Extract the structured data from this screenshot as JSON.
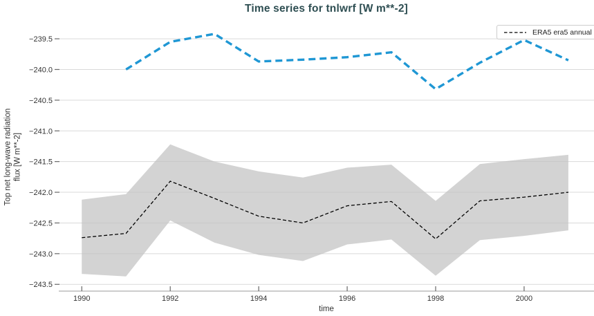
{
  "title": "Time series for tnlwrf [W m**-2]",
  "legend": {
    "items": [
      {
        "label": "ERA5 era5 annual",
        "sample": "dashed-black-line"
      }
    ]
  },
  "axes": {
    "x": {
      "label": "time",
      "tick_values": [
        1990,
        1992,
        1994,
        1996,
        1998,
        2000
      ],
      "tick_labels": [
        "1990",
        "1992",
        "1994",
        "1996",
        "1998",
        "2000"
      ],
      "range": [
        1989.48,
        2001.58
      ]
    },
    "y": {
      "label_line1": "Top net long-wave radiation",
      "label_line2": "flux [W m**-2]",
      "tick_values": [
        -239.5,
        -240.0,
        -240.5,
        -241.0,
        -241.5,
        -242.0,
        -242.5,
        -243.0,
        -243.5
      ],
      "tick_labels": [
        "−239.5",
        "−240.0",
        "−240.5",
        "−241.0",
        "−241.5",
        "−242.0",
        "−242.5",
        "−243.0",
        "−243.5"
      ],
      "range": [
        -243.61,
        -239.24
      ]
    }
  },
  "styles": {
    "background_color": "#ffffff",
    "title_color": "#2e4e52",
    "grid_color": "#d9d9d9",
    "axis_line_color": "#9a9a9a",
    "tick_mark_color": "#666666",
    "tick_label_color": "#333333",
    "legend_border_color": "#cccccc",
    "band_color": "#c0c0c0",
    "blue_line_color": "#1f97d4",
    "black_line_color": "#000000"
  },
  "chart_data": {
    "type": "line",
    "title": "Time series for tnlwrf [W m**-2]",
    "xlabel": "time",
    "ylabel": "Top net long-wave radiation flux [W m**-2]",
    "x_range": [
      1989.48,
      2001.58
    ],
    "y_range": [
      -243.61,
      -239.24
    ],
    "grid": "horizontal-only",
    "legend_position": "upper right",
    "series": [
      {
        "name": "ERA5 era5 annual",
        "in_legend": true,
        "line_style": "dashed",
        "dash": "5 3",
        "line_color": "#000000",
        "line_width": 1.3,
        "x": [
          1990,
          1991,
          1992,
          1993,
          1994,
          1995,
          1996,
          1997,
          1998,
          1999,
          2000,
          2001
        ],
        "y": [
          -242.74,
          -242.67,
          -241.82,
          -242.1,
          -242.39,
          -242.5,
          -242.22,
          -242.15,
          -242.76,
          -242.14,
          -242.08,
          -242.0
        ],
        "band_upper": [
          -242.12,
          -242.03,
          -241.22,
          -241.5,
          -241.66,
          -241.76,
          -241.6,
          -241.55,
          -242.14,
          -241.54,
          -241.46,
          -241.39
        ],
        "band_lower": [
          -243.33,
          -243.37,
          -242.46,
          -242.82,
          -243.02,
          -243.12,
          -242.85,
          -242.77,
          -243.36,
          -242.78,
          -242.71,
          -242.62
        ],
        "band_color": "#c0c0c0"
      },
      {
        "name": "",
        "in_legend": false,
        "line_style": "dashed",
        "dash": "10 6",
        "line_color": "#1f97d4",
        "line_width": 3.4,
        "x": [
          1991,
          1992,
          1993,
          1994,
          1995,
          1996,
          1997,
          1998,
          1999,
          2000,
          2001
        ],
        "y": [
          -240.0,
          -239.55,
          -239.42,
          -239.87,
          -239.84,
          -239.8,
          -239.72,
          -240.32,
          -239.89,
          -239.52,
          -239.85
        ]
      }
    ]
  }
}
